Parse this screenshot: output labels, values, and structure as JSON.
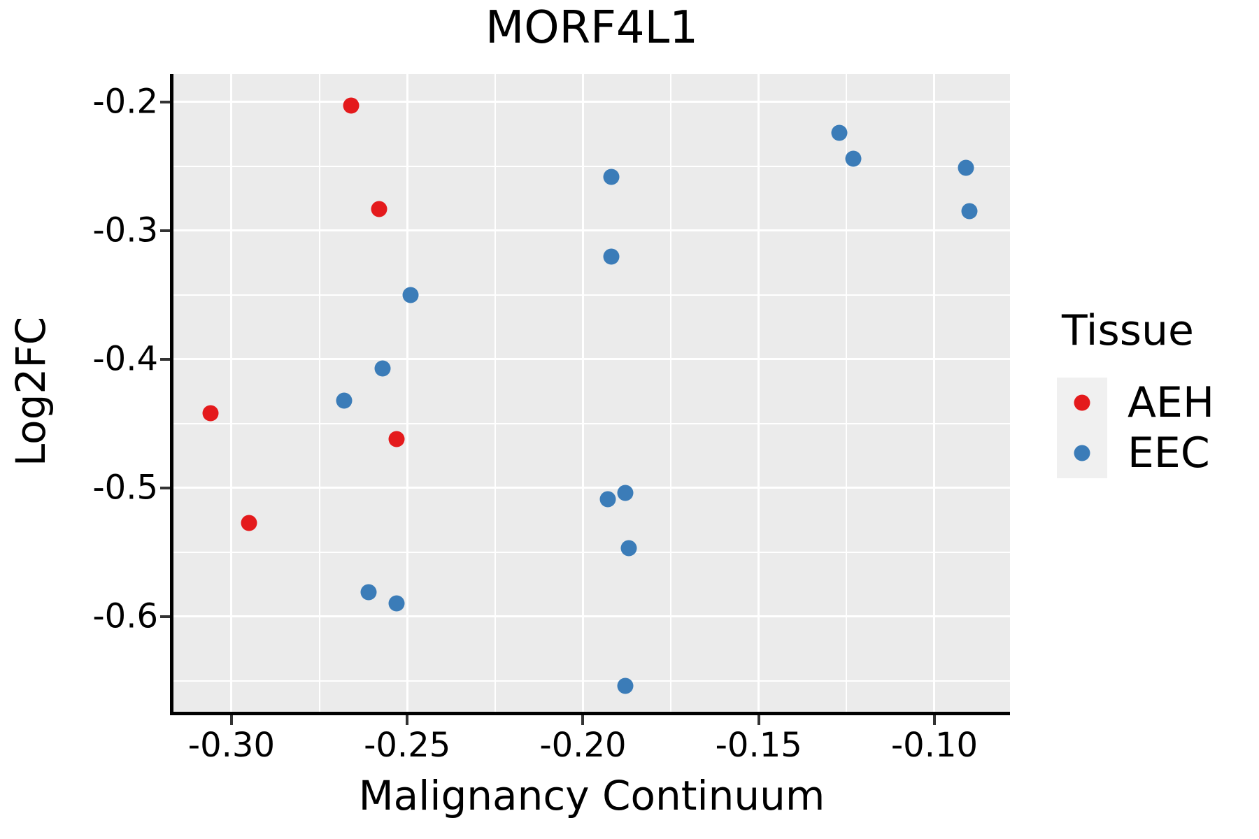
{
  "colors": {
    "panel_bg": "#EBEBEB",
    "grid": "#FFFFFF",
    "axis_line": "#000000",
    "tick": "#333333",
    "text": "#000000",
    "legend_key_bg": "#F0F0F0",
    "aeh": "#E41A1C",
    "eec": "#3B7CB8"
  },
  "chart_data": {
    "type": "scatter",
    "title": "MORF4L1",
    "xlabel": "Malignancy Continuum",
    "ylabel": "Log2FC",
    "xlim": [
      -0.3165,
      -0.0785
    ],
    "ylim": [
      -0.674,
      -0.1783
    ],
    "x_ticks": {
      "values": [
        -0.3,
        -0.25,
        -0.2,
        -0.15,
        -0.1
      ],
      "labels": [
        "-0.30",
        "-0.25",
        "-0.20",
        "-0.15",
        "-0.10"
      ]
    },
    "y_ticks": {
      "values": [
        -0.2,
        -0.3,
        -0.4,
        -0.5,
        -0.6
      ],
      "labels": [
        "-0.2",
        "-0.3",
        "-0.4",
        "-0.5",
        "-0.6"
      ]
    },
    "x_minor": [
      -0.275,
      -0.225,
      -0.175,
      -0.125
    ],
    "y_minor": [
      -0.25,
      -0.35,
      -0.45,
      -0.55,
      -0.65
    ],
    "grid": true,
    "legend_title": "Tissue",
    "legend_position": "right",
    "series": [
      {
        "name": "AEH",
        "color": "#E41A1C",
        "points": [
          [
            -0.266,
            -0.203
          ],
          [
            -0.258,
            -0.283
          ],
          [
            -0.306,
            -0.442
          ],
          [
            -0.253,
            -0.462
          ],
          [
            -0.295,
            -0.527
          ]
        ]
      },
      {
        "name": "EEC",
        "color": "#3B7CB8",
        "points": [
          [
            -0.127,
            -0.224
          ],
          [
            -0.123,
            -0.244
          ],
          [
            -0.091,
            -0.251
          ],
          [
            -0.192,
            -0.258
          ],
          [
            -0.09,
            -0.285
          ],
          [
            -0.192,
            -0.32
          ],
          [
            -0.249,
            -0.35
          ],
          [
            -0.257,
            -0.407
          ],
          [
            -0.268,
            -0.432
          ],
          [
            -0.188,
            -0.504
          ],
          [
            -0.193,
            -0.509
          ],
          [
            -0.187,
            -0.547
          ],
          [
            -0.261,
            -0.581
          ],
          [
            -0.253,
            -0.59
          ],
          [
            -0.188,
            -0.654
          ]
        ]
      }
    ]
  }
}
